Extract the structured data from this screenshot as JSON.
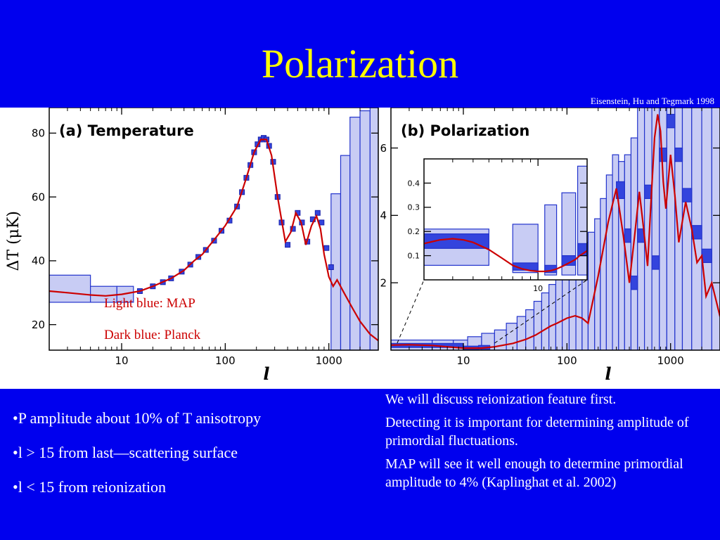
{
  "slide": {
    "title": "Polarization",
    "credit": "Eisenstein, Hu and Tegmark 1998"
  },
  "legend": {
    "light": "Light blue:  MAP",
    "dark": "Dark blue:  Planck"
  },
  "bullets": [
    "•P amplitude about 10% of T anisotropy",
    "•l > 15 from last—scattering surface",
    "•l < 15 from reionization"
  ],
  "notes": [
    "We will discuss reionization feature first.",
    "Detecting it is important for determining amplitude of primordial fluctuations.",
    "MAP will see it well enough to determine primordial amplitude to 4% (Kaplinghat et al. 2002)"
  ],
  "colors": {
    "background": "#0000ee",
    "title": "#ffff00",
    "curve": "#cc0000",
    "map_box": "#c8ccf4",
    "planck_box": "#3344dd",
    "box_edge": "#2233cc"
  },
  "chart_data": [
    {
      "type": "line",
      "title": "(a) Temperature",
      "xlabel": "l",
      "ylabel": "ΔT (μK)",
      "xscale": "log",
      "xlim": [
        2,
        3000
      ],
      "ylim": [
        12,
        88
      ],
      "xticks": [
        10,
        100,
        1000
      ],
      "xtick_labels": [
        "10",
        "100",
        "1000"
      ],
      "yticks": [
        20,
        40,
        60,
        80
      ],
      "ytick_labels": [
        "20",
        "40",
        "60",
        "80"
      ],
      "series": [
        {
          "x": [
            2,
            3,
            5,
            7,
            10,
            15,
            20,
            30,
            40,
            50,
            60,
            80,
            100,
            130,
            160,
            190,
            220,
            250,
            280,
            320,
            380,
            430,
            480,
            540,
            600,
            680,
            760,
            830,
            900,
            1000,
            1100,
            1200,
            1400,
            1700,
            2000,
            2500,
            3000
          ],
          "values": [
            30.5,
            30,
            29.3,
            29,
            29.5,
            30.5,
            32,
            34.5,
            37,
            40,
            42,
            47,
            51,
            57,
            66,
            74,
            78,
            78,
            73,
            60,
            46,
            49,
            55,
            52,
            45,
            51,
            54,
            50,
            42,
            35,
            32,
            34,
            30,
            25,
            21,
            17,
            15
          ]
        }
      ],
      "map_errors": [
        {
          "x": [
            2,
            5
          ],
          "y": [
            27,
            35.5
          ]
        },
        {
          "x": [
            5,
            9
          ],
          "y": [
            27,
            32
          ]
        },
        {
          "x": [
            9,
            13
          ],
          "y": [
            27,
            32
          ]
        },
        {
          "x": [
            1050,
            1300
          ],
          "y": [
            12,
            61
          ]
        },
        {
          "x": [
            1300,
            1600
          ],
          "y": [
            12,
            73
          ]
        },
        {
          "x": [
            1600,
            2000
          ],
          "y": [
            12,
            85
          ]
        },
        {
          "x": [
            2000,
            2500
          ],
          "y": [
            12,
            87
          ]
        },
        {
          "x": [
            2500,
            3000
          ],
          "y": [
            12,
            88
          ]
        }
      ],
      "planck_points": [
        {
          "x": 15,
          "y": 30.5
        },
        {
          "x": 20,
          "y": 32
        },
        {
          "x": 25,
          "y": 33.3
        },
        {
          "x": 30,
          "y": 34.5
        },
        {
          "x": 38,
          "y": 36.6
        },
        {
          "x": 46,
          "y": 38.8
        },
        {
          "x": 55,
          "y": 41.2
        },
        {
          "x": 65,
          "y": 43.4
        },
        {
          "x": 78,
          "y": 46.3
        },
        {
          "x": 92,
          "y": 49.4
        },
        {
          "x": 110,
          "y": 52.6
        },
        {
          "x": 130,
          "y": 57
        },
        {
          "x": 145,
          "y": 61.5
        },
        {
          "x": 160,
          "y": 66
        },
        {
          "x": 175,
          "y": 70
        },
        {
          "x": 190,
          "y": 74
        },
        {
          "x": 205,
          "y": 76.5
        },
        {
          "x": 220,
          "y": 78
        },
        {
          "x": 235,
          "y": 78.5
        },
        {
          "x": 250,
          "y": 78
        },
        {
          "x": 265,
          "y": 76
        },
        {
          "x": 290,
          "y": 71
        },
        {
          "x": 320,
          "y": 60
        },
        {
          "x": 350,
          "y": 52
        },
        {
          "x": 400,
          "y": 45
        },
        {
          "x": 450,
          "y": 50
        },
        {
          "x": 500,
          "y": 55
        },
        {
          "x": 550,
          "y": 52
        },
        {
          "x": 620,
          "y": 46
        },
        {
          "x": 700,
          "y": 53
        },
        {
          "x": 780,
          "y": 55
        },
        {
          "x": 850,
          "y": 52
        },
        {
          "x": 950,
          "y": 44
        },
        {
          "x": 1050,
          "y": 38
        }
      ]
    },
    {
      "type": "line",
      "title": "(b) Polarization",
      "xlabel": "l",
      "ylabel": "",
      "xscale": "log",
      "xlim": [
        2,
        3000
      ],
      "ylim": [
        0,
        7.2
      ],
      "xticks": [
        10,
        100,
        1000
      ],
      "xtick_labels": [
        "10",
        "100",
        "1000"
      ],
      "yticks": [
        2,
        4,
        6
      ],
      "ytick_labels": [
        "2",
        "4",
        "6"
      ],
      "series": [
        {
          "x": [
            2,
            3,
            5,
            7,
            10,
            15,
            20,
            30,
            40,
            50,
            60,
            70,
            80,
            100,
            120,
            140,
            160,
            200,
            250,
            300,
            350,
            400,
            450,
            500,
            550,
            600,
            650,
            700,
            750,
            800,
            850,
            900,
            1000,
            1100,
            1200,
            1400,
            1600,
            1800,
            2000,
            2200,
            2500,
            3000
          ],
          "values": [
            0.15,
            0.16,
            0.14,
            0.1,
            0.06,
            0.06,
            0.1,
            0.2,
            0.32,
            0.45,
            0.6,
            0.72,
            0.8,
            0.95,
            1.02,
            0.95,
            0.8,
            2.2,
            3.8,
            4.8,
            3.4,
            2.0,
            3.4,
            4.7,
            3.6,
            2.5,
            4.5,
            6.3,
            7.0,
            6.5,
            5.0,
            4.2,
            5.8,
            4.6,
            3.2,
            4.4,
            3.6,
            2.6,
            2.8,
            1.6,
            2.0,
            1.0
          ]
        }
      ],
      "map_errors": [
        {
          "x": [
            2,
            5
          ],
          "y": [
            0,
            0.3
          ]
        },
        {
          "x": [
            5,
            8
          ],
          "y": [
            0,
            0.3
          ]
        },
        {
          "x": [
            8,
            11
          ],
          "y": [
            0,
            0.3
          ]
        },
        {
          "x": [
            11,
            15
          ],
          "y": [
            0,
            0.4
          ]
        },
        {
          "x": [
            15,
            20
          ],
          "y": [
            0,
            0.5
          ]
        },
        {
          "x": [
            20,
            26
          ],
          "y": [
            0,
            0.6
          ]
        },
        {
          "x": [
            26,
            33
          ],
          "y": [
            0,
            0.8
          ]
        },
        {
          "x": [
            33,
            40
          ],
          "y": [
            0,
            1.0
          ]
        },
        {
          "x": [
            40,
            48
          ],
          "y": [
            0,
            1.2
          ]
        },
        {
          "x": [
            48,
            57
          ],
          "y": [
            0,
            1.45
          ]
        },
        {
          "x": [
            57,
            67
          ],
          "y": [
            0,
            1.7
          ]
        },
        {
          "x": [
            67,
            78
          ],
          "y": [
            0,
            1.95
          ]
        },
        {
          "x": [
            78,
            90
          ],
          "y": [
            0,
            2.2
          ]
        },
        {
          "x": [
            90,
            105
          ],
          "y": [
            0,
            2.45
          ]
        },
        {
          "x": [
            105,
            122
          ],
          "y": [
            0,
            2.7
          ]
        },
        {
          "x": [
            122,
            140
          ],
          "y": [
            0,
            2.95
          ]
        },
        {
          "x": [
            140,
            160
          ],
          "y": [
            0,
            3.2
          ]
        },
        {
          "x": [
            160,
            185
          ],
          "y": [
            0,
            3.5
          ]
        },
        {
          "x": [
            185,
            210
          ],
          "y": [
            0,
            3.9
          ]
        },
        {
          "x": [
            210,
            240
          ],
          "y": [
            0,
            4.5
          ]
        },
        {
          "x": [
            240,
            275
          ],
          "y": [
            0,
            5.2
          ]
        },
        {
          "x": [
            275,
            315
          ],
          "y": [
            0,
            5.8
          ]
        },
        {
          "x": [
            315,
            360
          ],
          "y": [
            0,
            5.6
          ]
        },
        {
          "x": [
            360,
            415
          ],
          "y": [
            0,
            5.8
          ]
        },
        {
          "x": [
            415,
            480
          ],
          "y": [
            0,
            6.3
          ]
        },
        {
          "x": [
            480,
            560
          ],
          "y": [
            0,
            7.2
          ]
        },
        {
          "x": [
            560,
            660
          ],
          "y": [
            0,
            7.2
          ]
        },
        {
          "x": [
            660,
            780
          ],
          "y": [
            0,
            7.2
          ]
        },
        {
          "x": [
            780,
            920
          ],
          "y": [
            0,
            7.2
          ]
        },
        {
          "x": [
            920,
            1100
          ],
          "y": [
            0,
            7.2
          ]
        },
        {
          "x": [
            1100,
            1300
          ],
          "y": [
            0,
            7.2
          ]
        },
        {
          "x": [
            1300,
            1600
          ],
          "y": [
            0,
            7.2
          ]
        },
        {
          "x": [
            1600,
            2000
          ],
          "y": [
            0,
            7.2
          ]
        },
        {
          "x": [
            2000,
            2500
          ],
          "y": [
            0,
            7.2
          ]
        },
        {
          "x": [
            2500,
            3000
          ],
          "y": [
            0,
            7.2
          ]
        }
      ],
      "planck_errors": [
        {
          "x": [
            2,
            10
          ],
          "y": [
            0.08,
            0.2
          ]
        },
        {
          "x": [
            10,
            14
          ],
          "y": [
            0.02,
            0.12
          ]
        },
        {
          "x": [
            14,
            18
          ],
          "y": [
            0.03,
            0.14
          ]
        },
        {
          "x": [
            300,
            360
          ],
          "y": [
            4.5,
            5.0
          ]
        },
        {
          "x": [
            360,
            415
          ],
          "y": [
            3.2,
            3.6
          ]
        },
        {
          "x": [
            415,
            480
          ],
          "y": [
            1.8,
            2.2
          ]
        },
        {
          "x": [
            480,
            560
          ],
          "y": [
            3.2,
            3.6
          ]
        },
        {
          "x": [
            560,
            660
          ],
          "y": [
            4.5,
            4.9
          ]
        },
        {
          "x": [
            660,
            780
          ],
          "y": [
            2.4,
            2.8
          ]
        },
        {
          "x": [
            780,
            920
          ],
          "y": [
            5.6,
            6.0
          ]
        },
        {
          "x": [
            920,
            1100
          ],
          "y": [
            6.6,
            7.0
          ]
        },
        {
          "x": [
            1100,
            1300
          ],
          "y": [
            5.6,
            6.0
          ]
        },
        {
          "x": [
            1300,
            1600
          ],
          "y": [
            4.4,
            4.8
          ]
        },
        {
          "x": [
            1600,
            2000
          ],
          "y": [
            3.3,
            3.7
          ]
        },
        {
          "x": [
            2000,
            2500
          ],
          "y": [
            2.6,
            3.0
          ]
        }
      ]
    },
    {
      "type": "line",
      "title": "",
      "xlabel": "",
      "ylabel": "",
      "xscale": "log",
      "xlim": [
        2,
        20
      ],
      "ylim": [
        0,
        0.5
      ],
      "xticks": [
        10
      ],
      "xtick_labels": [
        "10"
      ],
      "yticks": [
        0.1,
        0.2,
        0.3,
        0.4
      ],
      "ytick_labels": [
        "0.1",
        "0.2",
        "0.3",
        "0.4"
      ],
      "series": [
        {
          "x": [
            2,
            2.5,
            3,
            3.5,
            4,
            5,
            6,
            7,
            8,
            9,
            10,
            11,
            12,
            13,
            14,
            15,
            16,
            17,
            18,
            19,
            20
          ],
          "values": [
            0.15,
            0.165,
            0.17,
            0.165,
            0.155,
            0.125,
            0.09,
            0.06,
            0.045,
            0.038,
            0.035,
            0.035,
            0.038,
            0.045,
            0.055,
            0.065,
            0.075,
            0.085,
            0.1,
            0.11,
            0.12
          ]
        }
      ],
      "map_errors": [
        {
          "x": [
            2,
            5
          ],
          "y": [
            0.06,
            0.21
          ]
        },
        {
          "x": [
            7,
            10
          ],
          "y": [
            0.03,
            0.23
          ]
        },
        {
          "x": [
            11,
            13
          ],
          "y": [
            0.02,
            0.31
          ]
        },
        {
          "x": [
            14,
            17
          ],
          "y": [
            0.02,
            0.36
          ]
        },
        {
          "x": [
            17.5,
            20
          ],
          "y": [
            0.02,
            0.47
          ]
        }
      ],
      "planck_errors": [
        {
          "x": [
            2,
            5
          ],
          "y": [
            0.13,
            0.19
          ]
        },
        {
          "x": [
            7,
            10
          ],
          "y": [
            0.04,
            0.07
          ]
        },
        {
          "x": [
            11,
            13
          ],
          "y": [
            0.03,
            0.06
          ]
        },
        {
          "x": [
            14,
            17
          ],
          "y": [
            0.06,
            0.1
          ]
        },
        {
          "x": [
            17.5,
            20
          ],
          "y": [
            0.1,
            0.15
          ]
        }
      ]
    }
  ]
}
